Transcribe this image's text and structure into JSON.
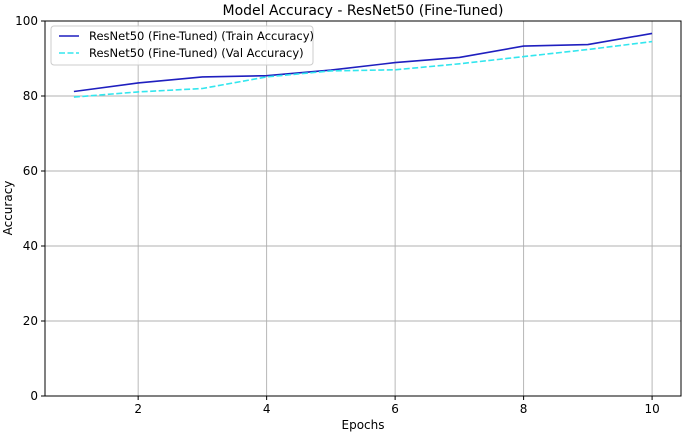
{
  "chart_data": {
    "type": "line",
    "title": "Model Accuracy - ResNet50 (Fine-Tuned)",
    "xlabel": "Epochs",
    "ylabel": "Accuracy",
    "xlim": [
      0.55,
      10.45
    ],
    "ylim": [
      0,
      100
    ],
    "xticks": [
      2,
      4,
      6,
      8,
      10
    ],
    "yticks": [
      0,
      20,
      40,
      60,
      80,
      100
    ],
    "grid": true,
    "legend_position": "top-left",
    "x": [
      1,
      2,
      3,
      4,
      5,
      6,
      7,
      8,
      9,
      10
    ],
    "series": [
      {
        "name": "ResNet50 (Fine-Tuned) (Train Accuracy)",
        "values": [
          81.2,
          83.5,
          85.1,
          85.4,
          86.9,
          88.9,
          90.3,
          93.3,
          93.7,
          96.7
        ],
        "color": "#1f1fbf",
        "style": "solid"
      },
      {
        "name": "ResNet50 (Fine-Tuned) (Val Accuracy)",
        "values": [
          79.7,
          81.1,
          82.0,
          85.1,
          86.7,
          87.0,
          88.6,
          90.5,
          92.4,
          94.5
        ],
        "color": "#33e6ee",
        "style": "dashed"
      }
    ]
  }
}
